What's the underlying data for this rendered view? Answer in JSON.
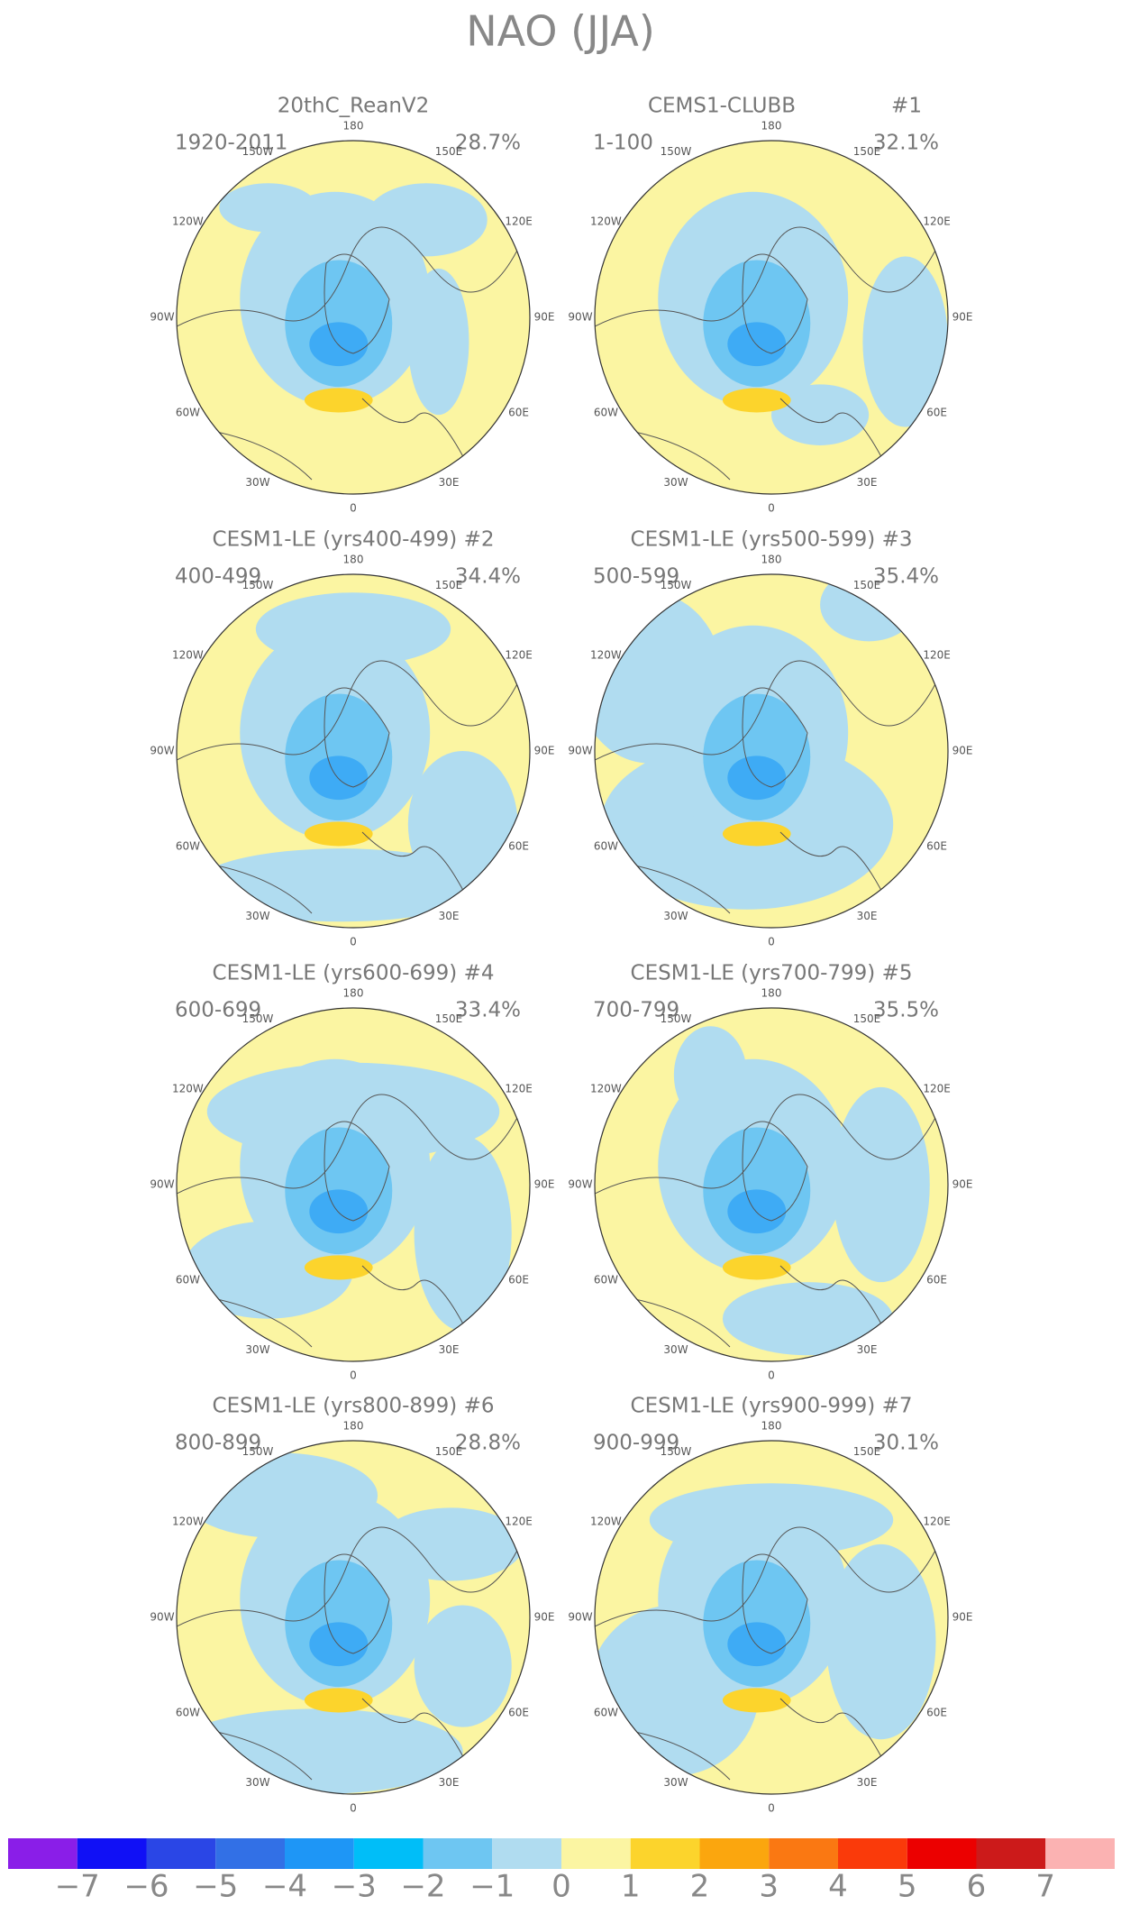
{
  "title": "NAO (JJA)",
  "panels": [
    {
      "title": "20thC_ReanV2",
      "period": "1920-2011",
      "variance": "28.7%"
    },
    {
      "title": "CEMS1-CLUBB",
      "number": "#1",
      "period": "1-100",
      "variance": "32.1%"
    },
    {
      "title": "CESM1-LE (yrs400-499) #2",
      "period": "400-499",
      "variance": "34.4%"
    },
    {
      "title": "CESM1-LE (yrs500-599) #3",
      "period": "500-599",
      "variance": "35.4%"
    },
    {
      "title": "CESM1-LE (yrs600-699) #4",
      "period": "600-699",
      "variance": "33.4%"
    },
    {
      "title": "CESM1-LE (yrs700-799) #5",
      "period": "700-799",
      "variance": "35.5%"
    },
    {
      "title": "CESM1-LE (yrs800-899) #6",
      "period": "800-899",
      "variance": "28.8%"
    },
    {
      "title": "CESM1-LE (yrs900-999) #7",
      "period": "900-999",
      "variance": "30.1%"
    }
  ],
  "longitude_labels": [
    "180",
    "150E",
    "120E",
    "90E",
    "60E",
    "30E",
    "0",
    "30W",
    "60W",
    "90W",
    "120W",
    "150W"
  ],
  "colorbar": {
    "labels": [
      "−7",
      "−6",
      "−5",
      "−4",
      "−3",
      "−2",
      "−1",
      "0",
      "1",
      "2",
      "3",
      "4",
      "5",
      "6",
      "7"
    ],
    "colors": [
      "#8a1ee8",
      "#1010f6",
      "#2a46e6",
      "#3270e6",
      "#1e96f6",
      "#00bef8",
      "#6ec6f2",
      "#b0dcf0",
      "#fbf5a2",
      "#fcd42c",
      "#fba60e",
      "#fa7812",
      "#fa3a0a",
      "#ec0000",
      "#cc1a1a",
      "#fbb2b2"
    ]
  }
}
